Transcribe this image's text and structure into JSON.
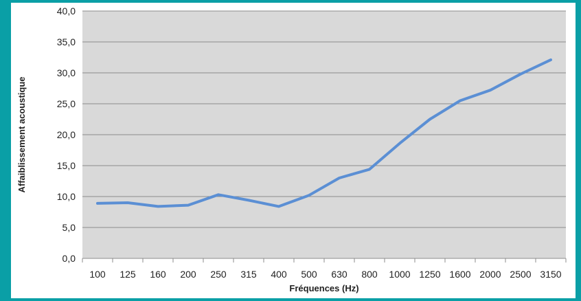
{
  "chart_data": {
    "type": "line",
    "title": "",
    "xlabel": "Fréquences (Hz)",
    "ylabel": "Affaiblissement acoustique",
    "categories": [
      "100",
      "125",
      "160",
      "200",
      "250",
      "315",
      "400",
      "500",
      "630",
      "800",
      "1000",
      "1250",
      "1600",
      "2000",
      "2500",
      "3150"
    ],
    "y_tick_labels": [
      "0,0",
      "5,0",
      "10,0",
      "15,0",
      "20,0",
      "25,0",
      "30,0",
      "35,0",
      "40,0"
    ],
    "ylim": [
      0,
      40
    ],
    "y_step": 5,
    "grid": true,
    "legend": "none",
    "series": [
      {
        "values": [
          8.9,
          9.0,
          8.4,
          8.6,
          10.3,
          9.4,
          8.4,
          10.2,
          13.0,
          14.4,
          18.6,
          22.5,
          25.5,
          27.2,
          29.8,
          32.1
        ]
      }
    ],
    "colors": {
      "plot_background": "#d9d9d9",
      "gridline": "#8c8c8c",
      "line": "#5b8fd4",
      "frame": "#0a9fa6"
    }
  }
}
